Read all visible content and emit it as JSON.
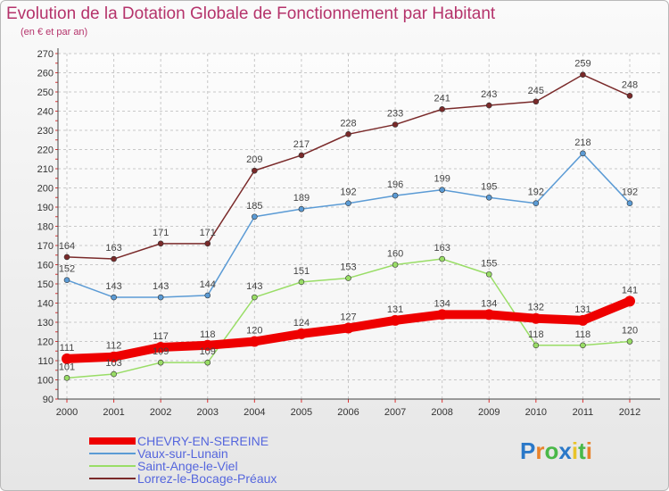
{
  "brand": {
    "text": "Proxiti",
    "letters": [
      "P",
      "r",
      "o",
      "x",
      "i",
      "t",
      "i"
    ],
    "colors": [
      "#2a78c8",
      "#e8822a",
      "#49b848",
      "#2a78c8",
      "#e8c32a",
      "#49b848",
      "#e8822a"
    ]
  },
  "chart_data": {
    "type": "line",
    "title": "Evolution de la Dotation Globale de Fonctionnement par Habitant",
    "subtitle": "(en € et par an)",
    "xlabel": "",
    "ylabel": "",
    "categories": [
      "2000",
      "2001",
      "2002",
      "2003",
      "2004",
      "2005",
      "2006",
      "2007",
      "2008",
      "2009",
      "2010",
      "2011",
      "2012"
    ],
    "ylim": [
      90,
      270
    ],
    "yticks": [
      90,
      100,
      110,
      120,
      130,
      140,
      150,
      160,
      170,
      180,
      190,
      200,
      210,
      220,
      230,
      240,
      250,
      260,
      270
    ],
    "grid": true,
    "legend_position": "bottom-left",
    "series": [
      {
        "name": "CHEVRY-EN-SEREINE",
        "color": "#ee0000",
        "values": [
          111,
          112,
          117,
          118,
          120,
          124,
          127,
          131,
          134,
          134,
          132,
          131,
          141
        ],
        "labels": [
          "111",
          "112",
          "117",
          "118",
          "120",
          "124",
          "127",
          "131",
          "134",
          "134",
          "132",
          "131",
          "141"
        ],
        "thick": true
      },
      {
        "name": "Vaux-sur-Lunain",
        "color": "#5b9bd5",
        "values": [
          152,
          143,
          143,
          144,
          185,
          189,
          192,
          196,
          199,
          195,
          192,
          218,
          192
        ],
        "labels": [
          "152",
          "143",
          "143",
          "144",
          "185",
          "189",
          "192",
          "196",
          "199",
          "195",
          "192",
          "218",
          "192"
        ],
        "thick": false
      },
      {
        "name": "Saint-Ange-le-Viel",
        "color": "#99dd66",
        "values": [
          101,
          103,
          109,
          109,
          143,
          151,
          153,
          160,
          163,
          155,
          118,
          118,
          120
        ],
        "labels": [
          "101",
          "103",
          "109",
          "109",
          "143",
          "151",
          "153",
          "160",
          "163",
          "155",
          "118",
          "118",
          "120"
        ],
        "thick": false
      },
      {
        "name": "Lorrez-le-Bocage-Préaux",
        "color": "#7a2a2a",
        "values": [
          164,
          163,
          171,
          171,
          209,
          217,
          228,
          233,
          241,
          243,
          245,
          259,
          248
        ],
        "labels": [
          "164",
          "163",
          "171",
          "171",
          "209",
          "217",
          "228",
          "233",
          "241",
          "243",
          "245",
          "259",
          "248"
        ],
        "thick": false
      }
    ]
  }
}
